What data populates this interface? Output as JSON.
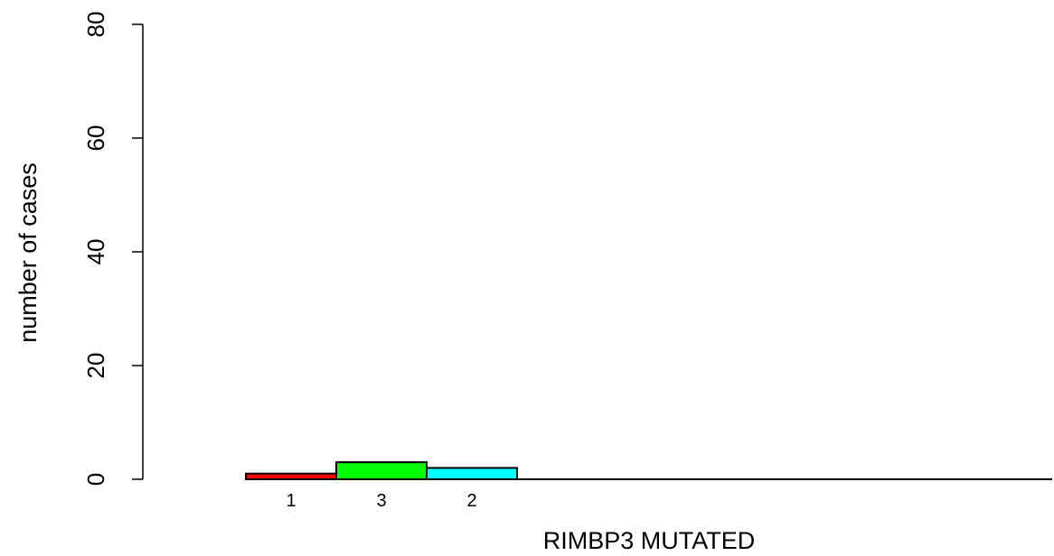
{
  "chart_data": {
    "type": "bar",
    "title": "",
    "xlabel": "RIMBP3 MUTATED",
    "ylabel": "number of cases",
    "ylim": [
      0,
      80
    ],
    "yticks": [
      0,
      20,
      40,
      60,
      80
    ],
    "categories": [
      "1",
      "3",
      "2"
    ],
    "values": [
      1,
      3,
      2
    ],
    "colors": [
      "#ff0000",
      "#00ff00",
      "#00ffff"
    ],
    "grid": false,
    "legend": "none"
  }
}
